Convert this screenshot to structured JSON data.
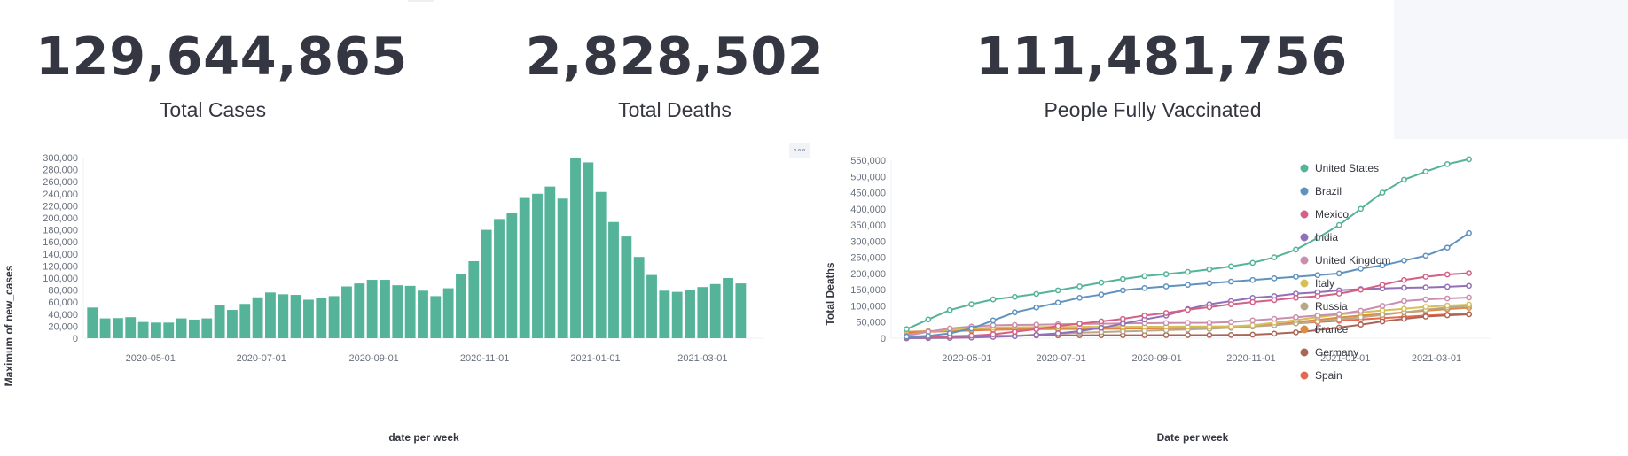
{
  "metrics": [
    {
      "value": "129,644,865",
      "label": "Total Cases"
    },
    {
      "value": "2,828,502",
      "label": "Total Deaths"
    },
    {
      "value": "111,481,756",
      "label": "People Fully Vaccinated"
    }
  ],
  "chart_data": [
    {
      "type": "bar",
      "title": "",
      "xlabel": "date per week",
      "ylabel": "Maximum of new_cases",
      "color": "#54b399",
      "ylim": [
        0,
        300000
      ],
      "y_ticks": [
        0,
        20000,
        40000,
        60000,
        80000,
        100000,
        120000,
        140000,
        160000,
        180000,
        200000,
        220000,
        240000,
        260000,
        280000,
        300000
      ],
      "y_tick_labels": [
        "0",
        "20,000",
        "40,000",
        "60,000",
        "80,000",
        "100,000",
        "120,000",
        "140,000",
        "160,000",
        "180,000",
        "200,000",
        "220,000",
        "240,000",
        "260,000",
        "280,000",
        "300,000"
      ],
      "x_tick_labels": [
        "2020-05-01",
        "2020-07-01",
        "2020-09-01",
        "2020-11-01",
        "2021-01-01",
        "2021-03-01"
      ],
      "x_range": [
        "2020-03-25",
        "2021-04-04"
      ],
      "x_ticks": [
        "2020-05-01",
        "2020-07-01",
        "2020-09-01",
        "2020-11-01",
        "2021-01-01",
        "2021-03-01"
      ],
      "x": [
        "2020-03-30",
        "2020-04-06",
        "2020-04-13",
        "2020-04-20",
        "2020-04-27",
        "2020-05-04",
        "2020-05-11",
        "2020-05-18",
        "2020-05-25",
        "2020-06-01",
        "2020-06-08",
        "2020-06-15",
        "2020-06-22",
        "2020-06-29",
        "2020-07-06",
        "2020-07-13",
        "2020-07-20",
        "2020-07-27",
        "2020-08-03",
        "2020-08-10",
        "2020-08-17",
        "2020-08-24",
        "2020-08-31",
        "2020-09-07",
        "2020-09-14",
        "2020-09-21",
        "2020-09-28",
        "2020-10-05",
        "2020-10-12",
        "2020-10-19",
        "2020-10-26",
        "2020-11-02",
        "2020-11-09",
        "2020-11-16",
        "2020-11-23",
        "2020-11-30",
        "2020-12-07",
        "2020-12-14",
        "2020-12-21",
        "2020-12-28",
        "2021-01-04",
        "2021-01-11",
        "2021-01-18",
        "2021-01-25",
        "2021-02-01",
        "2021-02-08",
        "2021-02-15",
        "2021-02-22",
        "2021-03-01",
        "2021-03-08",
        "2021-03-15",
        "2021-03-22"
      ],
      "values": [
        51000,
        33000,
        33500,
        35000,
        27000,
        26000,
        26000,
        33000,
        31000,
        33000,
        55000,
        47000,
        57000,
        68000,
        76000,
        73000,
        72000,
        64000,
        67000,
        70000,
        86000,
        91000,
        97000,
        97000,
        88000,
        87000,
        79000,
        70000,
        83000,
        106000,
        128000,
        180000,
        198000,
        208000,
        233000,
        240000,
        252000,
        232000,
        300000,
        292000,
        243000,
        193000,
        169000,
        135000,
        105000,
        79000,
        77000,
        80000,
        85000,
        90000,
        100000,
        91000
      ]
    },
    {
      "type": "line",
      "title": "",
      "xlabel": "Date per week",
      "ylabel": "Total Deaths",
      "ylim": [
        0,
        550000
      ],
      "y_ticks": [
        0,
        50000,
        100000,
        150000,
        200000,
        250000,
        300000,
        350000,
        400000,
        450000,
        500000,
        550000
      ],
      "y_tick_labels": [
        "0",
        "50,000",
        "100,000",
        "150,000",
        "200,000",
        "250,000",
        "300,000",
        "350,000",
        "400,000",
        "450,000",
        "500,000",
        "550,000"
      ],
      "x_tick_labels": [
        "2020-05-01",
        "2020-07-01",
        "2020-09-01",
        "2020-11-01",
        "2021-01-01",
        "2021-03-01"
      ],
      "x_range": [
        "2020-03-13",
        "2021-04-05"
      ],
      "x_ticks": [
        "2020-05-01",
        "2020-07-01",
        "2020-09-01",
        "2020-11-01",
        "2021-01-01",
        "2021-03-01"
      ],
      "x": [
        "2020-03-23",
        "2020-04-06",
        "2020-04-20",
        "2020-05-04",
        "2020-05-18",
        "2020-06-01",
        "2020-06-15",
        "2020-06-29",
        "2020-07-13",
        "2020-07-27",
        "2020-08-10",
        "2020-08-24",
        "2020-09-07",
        "2020-09-21",
        "2020-10-05",
        "2020-10-19",
        "2020-11-02",
        "2020-11-16",
        "2020-11-30",
        "2020-12-14",
        "2020-12-28",
        "2021-01-11",
        "2021-01-25",
        "2021-02-08",
        "2021-02-22",
        "2021-03-08",
        "2021-03-22"
      ],
      "legend_position": "right",
      "series": [
        {
          "name": "United States",
          "color": "#54b399",
          "values": [
            28000,
            58000,
            87000,
            105000,
            120000,
            128000,
            137000,
            148000,
            160000,
            172000,
            183000,
            192000,
            198000,
            205000,
            213000,
            222000,
            233000,
            250000,
            274000,
            310000,
            350000,
            400000,
            450000,
            490000,
            515000,
            538000,
            553000
          ]
        },
        {
          "name": "Brazil",
          "color": "#6092c0",
          "values": [
            5000,
            7000,
            15000,
            30000,
            55000,
            80000,
            95000,
            110000,
            125000,
            135000,
            148000,
            155000,
            160000,
            165000,
            170000,
            175000,
            180000,
            185000,
            190000,
            195000,
            200000,
            215000,
            225000,
            240000,
            255000,
            280000,
            325000
          ]
        },
        {
          "name": "Mexico",
          "color": "#d36086",
          "values": [
            2000,
            4000,
            6000,
            8000,
            12000,
            20000,
            28000,
            38000,
            45000,
            52000,
            60000,
            70000,
            78000,
            88000,
            96000,
            105000,
            112000,
            118000,
            125000,
            130000,
            138000,
            150000,
            165000,
            180000,
            190000,
            197000,
            201000
          ]
        },
        {
          "name": "India",
          "color": "#9170b8",
          "values": [
            0,
            500,
            1000,
            2000,
            4000,
            6000,
            10000,
            15000,
            22000,
            32000,
            45000,
            58000,
            70000,
            90000,
            105000,
            115000,
            125000,
            130000,
            138000,
            142000,
            148000,
            152000,
            154000,
            156000,
            157000,
            159000,
            162000
          ]
        },
        {
          "name": "United Kingdom",
          "color": "#ca8eae",
          "values": [
            8000,
            20000,
            30000,
            36000,
            40000,
            41000,
            42000,
            43000,
            44000,
            45000,
            46000,
            46500,
            47000,
            47500,
            48000,
            50000,
            55000,
            60000,
            65000,
            70000,
            75000,
            85000,
            100000,
            115000,
            120000,
            123000,
            126000
          ]
        },
        {
          "name": "Italy",
          "color": "#d6bf57",
          "values": [
            10000,
            20000,
            26000,
            30000,
            33000,
            34000,
            34500,
            35000,
            35200,
            35300,
            35400,
            35500,
            35700,
            36000,
            36500,
            37000,
            40000,
            48000,
            56000,
            65000,
            73000,
            80000,
            86000,
            91000,
            97000,
            101000,
            104000
          ]
        },
        {
          "name": "Russia",
          "color": "#b9a888",
          "values": [
            0,
            200,
            1000,
            3000,
            5000,
            8000,
            11000,
            14000,
            17000,
            19000,
            21000,
            23000,
            25000,
            27000,
            29000,
            32000,
            36000,
            40000,
            46000,
            52000,
            58000,
            65000,
            72000,
            80000,
            88000,
            95000,
            100000
          ]
        },
        {
          "name": "France",
          "color": "#da8b45",
          "values": [
            20000,
            22000,
            24000,
            25000,
            27000,
            28000,
            29000,
            29500,
            30000,
            30200,
            30400,
            30700,
            31000,
            31500,
            32500,
            34000,
            37000,
            42000,
            50000,
            57000,
            64000,
            70000,
            75000,
            80000,
            85000,
            90000,
            94000
          ]
        },
        {
          "name": "Germany",
          "color": "#aa6556",
          "values": [
            500,
            2000,
            4000,
            6000,
            7000,
            8000,
            8500,
            9000,
            9100,
            9200,
            9300,
            9400,
            9500,
            9600,
            9700,
            10000,
            11000,
            14000,
            18000,
            25000,
            33000,
            42000,
            52000,
            60000,
            67000,
            71000,
            74000
          ]
        },
        {
          "name": "Spain",
          "color": "#e7664c",
          "values": [
            15000,
            20000,
            22000,
            24000,
            26000,
            27000,
            28000,
            28500,
            28800,
            29000,
            29500,
            30000,
            31000,
            32000,
            33500,
            35000,
            38000,
            42000,
            46000,
            50000,
            54000,
            58000,
            62000,
            66000,
            70000,
            73000,
            75000
          ]
        }
      ]
    }
  ]
}
